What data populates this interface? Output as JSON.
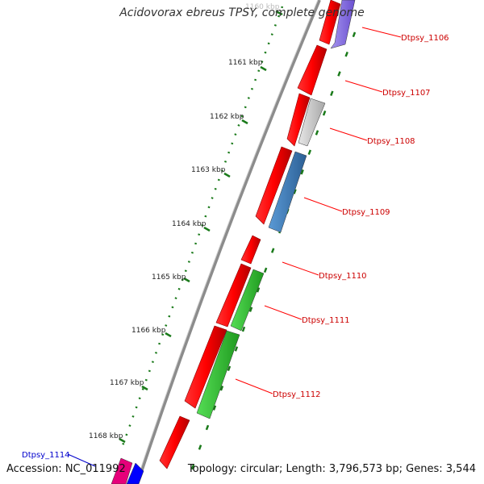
{
  "title": "Acidovorax ebreus TPSY, complete genome",
  "accession": "Accession: NC_011992",
  "summary": "Topology: circular; Length: 3,796,573 bp; Genes: 3,544",
  "colors": {
    "backbone": "#8c8c8c",
    "tick": "#1a7a1a",
    "forward_gene": "#ff0000",
    "label_red": "#cc0000",
    "label_blue": "#0000cc",
    "gray_gene": "#c8c8c8",
    "steelblue_gene": "#3e80bf",
    "green_gene": "#33cc33",
    "purple_gene": "#8a73e0",
    "magenta_gene": "#e6007a",
    "blue_gene": "#0000ff"
  },
  "kbp_marks": [
    "1160 kbp",
    "1161 kbp",
    "1162 kbp",
    "1163 kbp",
    "1164 kbp",
    "1165 kbp",
    "1166 kbp",
    "1167 kbp",
    "1168 kbp"
  ],
  "gene_labels": [
    "Dtpsy_1106",
    "Dtpsy_1107",
    "Dtpsy_1108",
    "Dtpsy_1109",
    "Dtpsy_1110",
    "Dtpsy_1111",
    "Dtpsy_1112",
    "Dtpsy_1114"
  ]
}
